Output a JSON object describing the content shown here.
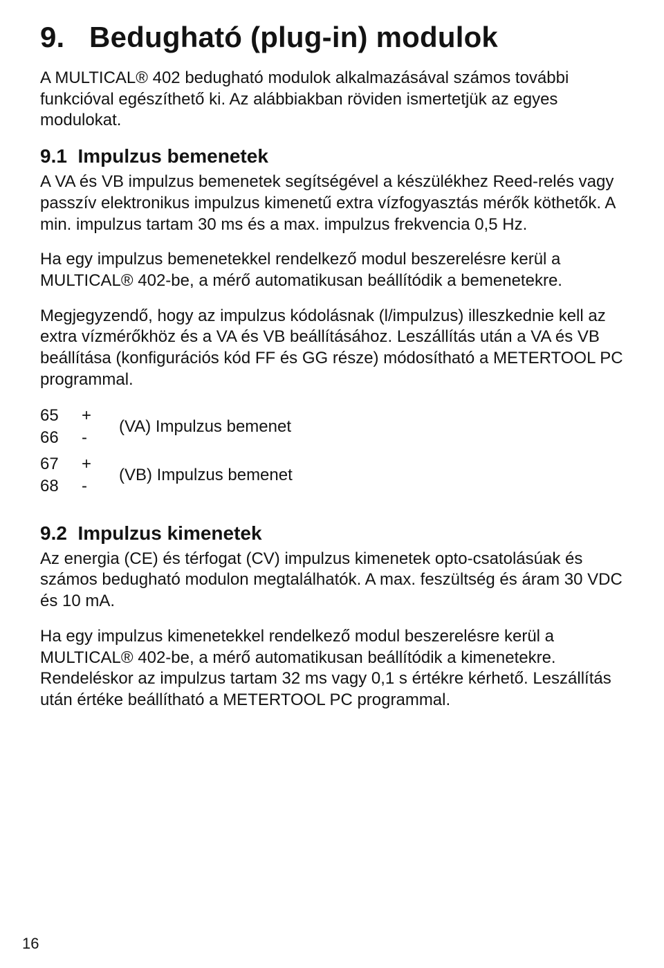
{
  "title": "9.   Bedugható (plug-in) modulok",
  "intro": "A MULTICAL® 402 bedugható modulok alkalmazásával számos további funkcióval egészíthető ki. Az alábbiakban röviden ismertetjük az egyes modulokat.",
  "s91": {
    "heading": "9.1  Impulzus bemenetek",
    "p1": "A VA és VB impulzus bemenetek segítségével a készülékhez Reed-relés vagy passzív elektronikus impulzus kimenetű extra vízfogyasztás mérők köthetők. A min. impulzus tartam 30 ms és a max. impulzus frekvencia 0,5 Hz.",
    "p2": "Ha egy impulzus bemenetekkel rendelkező modul beszerelésre kerül a MULTICAL® 402-be, a mérő automatikusan beállítódik a bemenetekre.",
    "p3": "Megjegyzendő, hogy az impulzus kódolásnak (l/impulzus) illeszkednie kell az extra vízmérőkhöz és a VA és VB beállításához. Leszállítás után a VA és VB beállítása (konfigurációs kód FF és GG része) módosítható a METERTOOL PC programmal.",
    "table": {
      "rows": [
        {
          "n": "65",
          "s": "+",
          "d": "(VA) Impulzus bemenet"
        },
        {
          "n": "66",
          "s": "-",
          "d": ""
        },
        {
          "n": "67",
          "s": "+",
          "d": "(VB) Impulzus bemenet"
        },
        {
          "n": "68",
          "s": "-",
          "d": ""
        }
      ]
    }
  },
  "s92": {
    "heading": "9.2  Impulzus kimenetek",
    "p1": "Az energia (CE) és térfogat (CV) impulzus kimenetek opto-csatolásúak és számos bedugható modulon megtalálhatók. A max. feszültség és áram 30 VDC és 10 mA.",
    "p2": "Ha egy impulzus kimenetekkel rendelkező modul beszerelésre kerül a MULTICAL® 402-be, a mérő automatikusan beállítódik a kimenetekre. Rendeléskor az impulzus tartam 32 ms vagy 0,1 s értékre kérhető. Leszállítás után értéke beállítható a METERTOOL PC programmal."
  },
  "pageNumber": "16"
}
